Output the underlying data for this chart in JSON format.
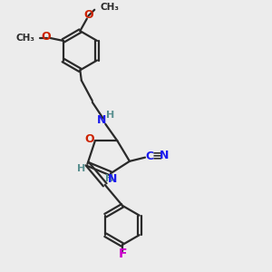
{
  "background_color": "#ececec",
  "bond_color": "#2a2a2a",
  "bond_width": 1.6,
  "atoms": {
    "N_color": "#1a1aee",
    "O_color": "#cc2200",
    "F_color": "#cc00cc",
    "H_color": "#5a9090",
    "C_color": "#1a1aee"
  },
  "figsize": [
    3.0,
    3.0
  ],
  "dpi": 100,
  "xlim": [
    0,
    10
  ],
  "ylim": [
    0,
    10
  ]
}
